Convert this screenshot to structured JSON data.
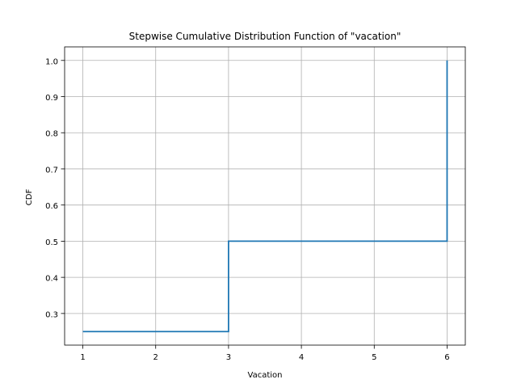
{
  "chart_data": {
    "type": "line",
    "drawstyle": "steps-post",
    "title": "Stepwise Cumulative Distribution Function of \"vacation\"",
    "xlabel": "Vacation",
    "ylabel": "CDF",
    "xlim": [
      0.75,
      6.25
    ],
    "ylim": [
      0.2125,
      1.0375
    ],
    "xticks": [
      1,
      2,
      3,
      4,
      5,
      6
    ],
    "xtick_labels": [
      "1",
      "2",
      "3",
      "4",
      "5",
      "6"
    ],
    "yticks": [
      0.3,
      0.4,
      0.5,
      0.6,
      0.7,
      0.8,
      0.9,
      1.0
    ],
    "ytick_labels": [
      "0.3",
      "0.4",
      "0.5",
      "0.6",
      "0.7",
      "0.8",
      "0.9",
      "1.0"
    ],
    "grid": true,
    "series": [
      {
        "x": [
          1,
          3,
          6,
          6
        ],
        "y": [
          0.25,
          0.5,
          0.5,
          1.0
        ],
        "color": "#1f77b4"
      }
    ]
  }
}
